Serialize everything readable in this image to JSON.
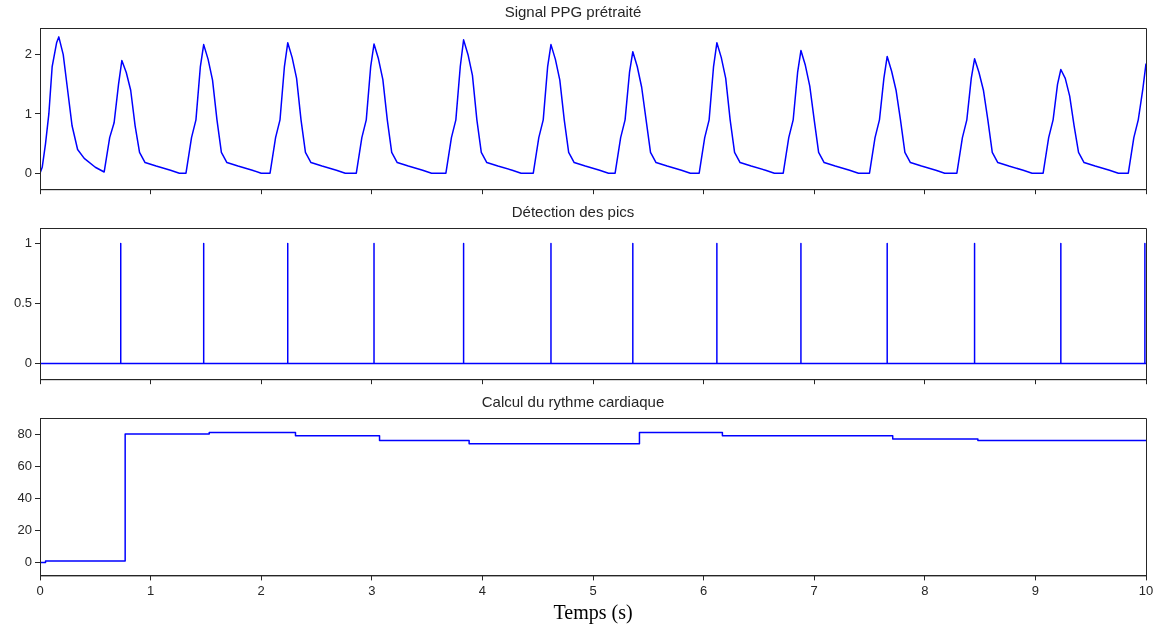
{
  "chart_data": [
    {
      "type": "line",
      "title": "Signal PPG prétraité",
      "tick_labels": "y",
      "grid": false,
      "legend": false,
      "marker": "none",
      "xlim": [
        0,
        10
      ],
      "xticks": [
        0,
        1,
        2,
        3,
        4,
        5,
        6,
        7,
        8,
        9,
        10
      ],
      "ylim": [
        -0.27,
        2.45
      ],
      "yticks": [
        0,
        1,
        2
      ],
      "series": [
        {
          "color": "#0000ff",
          "x": [
            0,
            0.02,
            0.05,
            0.08,
            0.11,
            0.15,
            0.17,
            0.21,
            0.25,
            0.29,
            0.34,
            0.4,
            0.5,
            0.58,
            0.63,
            0.67,
            0.71,
            0.74,
            0.78,
            0.82,
            0.86,
            0.9,
            0.95,
            1.05,
            1.18,
            1.26,
            1.32,
            1.37,
            1.41,
            1.45,
            1.48,
            1.52,
            1.56,
            1.6,
            1.64,
            1.69,
            1.79,
            1.92,
            2.0,
            2.08,
            2.13,
            2.17,
            2.21,
            2.24,
            2.28,
            2.32,
            2.36,
            2.4,
            2.45,
            2.55,
            2.68,
            2.76,
            2.86,
            2.91,
            2.95,
            2.99,
            3.02,
            3.06,
            3.1,
            3.14,
            3.18,
            3.23,
            3.33,
            3.46,
            3.54,
            3.67,
            3.72,
            3.76,
            3.8,
            3.83,
            3.87,
            3.91,
            3.95,
            3.99,
            4.04,
            4.14,
            4.27,
            4.35,
            4.46,
            4.51,
            4.55,
            4.59,
            4.62,
            4.66,
            4.7,
            4.74,
            4.78,
            4.83,
            4.93,
            5.06,
            5.14,
            5.2,
            5.25,
            5.29,
            5.33,
            5.36,
            5.4,
            5.44,
            5.48,
            5.52,
            5.57,
            5.67,
            5.8,
            5.88,
            5.96,
            6.01,
            6.05,
            6.09,
            6.12,
            6.16,
            6.2,
            6.24,
            6.28,
            6.33,
            6.43,
            6.56,
            6.64,
            6.72,
            6.77,
            6.81,
            6.85,
            6.88,
            6.92,
            6.96,
            7.0,
            7.04,
            7.09,
            7.19,
            7.32,
            7.4,
            7.5,
            7.55,
            7.59,
            7.63,
            7.66,
            7.7,
            7.74,
            7.78,
            7.82,
            7.87,
            7.97,
            8.1,
            8.18,
            8.29,
            8.34,
            8.38,
            8.42,
            8.45,
            8.49,
            8.53,
            8.57,
            8.61,
            8.66,
            8.76,
            8.89,
            8.97,
            9.07,
            9.12,
            9.16,
            9.2,
            9.23,
            9.27,
            9.31,
            9.35,
            9.39,
            9.44,
            9.54,
            9.67,
            9.75,
            9.84,
            9.89,
            9.93,
            9.97,
            10.0
          ],
          "values": [
            0,
            0.1,
            0.5,
            1.0,
            1.8,
            2.2,
            2.3,
            2.0,
            1.4,
            0.8,
            0.4,
            0.25,
            0.1,
            0.02,
            0.6,
            0.85,
            1.5,
            1.9,
            1.7,
            1.4,
            0.8,
            0.35,
            0.18,
            0.12,
            0.05,
            0,
            0,
            0.6,
            0.9,
            1.8,
            2.17,
            1.92,
            1.57,
            0.9,
            0.35,
            0.18,
            0.12,
            0.05,
            0,
            0,
            0.6,
            0.9,
            1.8,
            2.2,
            1.95,
            1.6,
            0.9,
            0.35,
            0.18,
            0.12,
            0.05,
            0,
            0,
            0.6,
            0.9,
            1.8,
            2.18,
            1.93,
            1.58,
            0.9,
            0.35,
            0.18,
            0.12,
            0.05,
            0,
            0,
            0.6,
            0.9,
            1.8,
            2.25,
            2.0,
            1.65,
            0.9,
            0.35,
            0.18,
            0.12,
            0.05,
            0,
            0,
            0.6,
            0.9,
            1.8,
            2.17,
            1.92,
            1.57,
            0.9,
            0.35,
            0.18,
            0.12,
            0.05,
            0,
            0,
            0.6,
            0.9,
            1.7,
            2.05,
            1.8,
            1.45,
            0.9,
            0.35,
            0.18,
            0.12,
            0.05,
            0,
            0,
            0.6,
            0.9,
            1.8,
            2.2,
            1.95,
            1.6,
            0.9,
            0.35,
            0.18,
            0.12,
            0.05,
            0,
            0,
            0.6,
            0.9,
            1.7,
            2.07,
            1.82,
            1.47,
            0.9,
            0.35,
            0.18,
            0.12,
            0.05,
            0,
            0,
            0.6,
            0.9,
            1.6,
            1.97,
            1.72,
            1.4,
            0.9,
            0.35,
            0.18,
            0.12,
            0.05,
            0,
            0,
            0.6,
            0.9,
            1.6,
            1.93,
            1.7,
            1.4,
            0.9,
            0.35,
            0.18,
            0.12,
            0.05,
            0,
            0,
            0.6,
            0.9,
            1.5,
            1.75,
            1.6,
            1.3,
            0.8,
            0.35,
            0.18,
            0.12,
            0.05,
            0,
            0,
            0.6,
            0.9,
            1.4,
            1.85
          ]
        }
      ]
    },
    {
      "type": "line",
      "title": "Détection des pics",
      "tick_labels": "y",
      "grid": false,
      "legend": false,
      "marker": "none",
      "xlim": [
        0,
        10
      ],
      "xticks": [
        0,
        1,
        2,
        3,
        4,
        5,
        6,
        7,
        8,
        9,
        10
      ],
      "ylim": [
        -0.13,
        1.13
      ],
      "yticks": [
        0,
        0.5,
        1
      ],
      "series": [
        {
          "color": "#0000ff",
          "x": [
            0,
            0.73,
            0.73,
            0.73,
            1.48,
            1.48,
            1.48,
            2.24,
            2.24,
            2.24,
            3.02,
            3.02,
            3.02,
            3.83,
            3.83,
            3.83,
            4.62,
            4.62,
            4.62,
            5.36,
            5.36,
            5.36,
            6.12,
            6.12,
            6.12,
            6.88,
            6.88,
            6.88,
            7.66,
            7.66,
            7.66,
            8.45,
            8.45,
            8.45,
            9.23,
            9.23,
            9.23,
            9.99,
            9.99,
            9.99,
            10
          ],
          "values": [
            0,
            0,
            1,
            0,
            0,
            1,
            0,
            0,
            1,
            0,
            0,
            1,
            0,
            0,
            1,
            0,
            0,
            1,
            0,
            0,
            1,
            0,
            0,
            1,
            0,
            0,
            1,
            0,
            0,
            1,
            0,
            0,
            1,
            0,
            0,
            1,
            0,
            0,
            1,
            0,
            0
          ]
        }
      ]
    },
    {
      "type": "step",
      "title": "Calcul du rythme cardiaque",
      "xlabel": "Temps (s)",
      "grid": false,
      "legend": false,
      "marker": "none",
      "xlim": [
        0,
        10
      ],
      "xticks": [
        0,
        1,
        2,
        3,
        4,
        5,
        6,
        7,
        8,
        9,
        10
      ],
      "ylim": [
        -8,
        90
      ],
      "yticks": [
        0,
        20,
        40,
        60,
        80
      ],
      "series": [
        {
          "color": "#0000ff",
          "x": [
            0,
            0.05,
            0.77,
            1.53,
            2.31,
            3.07,
            3.88,
            5.42,
            6.17,
            7.71,
            8.48,
            10
          ],
          "values": [
            0,
            1,
            80,
            81,
            79,
            76,
            74,
            81,
            79,
            77,
            76,
            76
          ]
        }
      ]
    }
  ]
}
